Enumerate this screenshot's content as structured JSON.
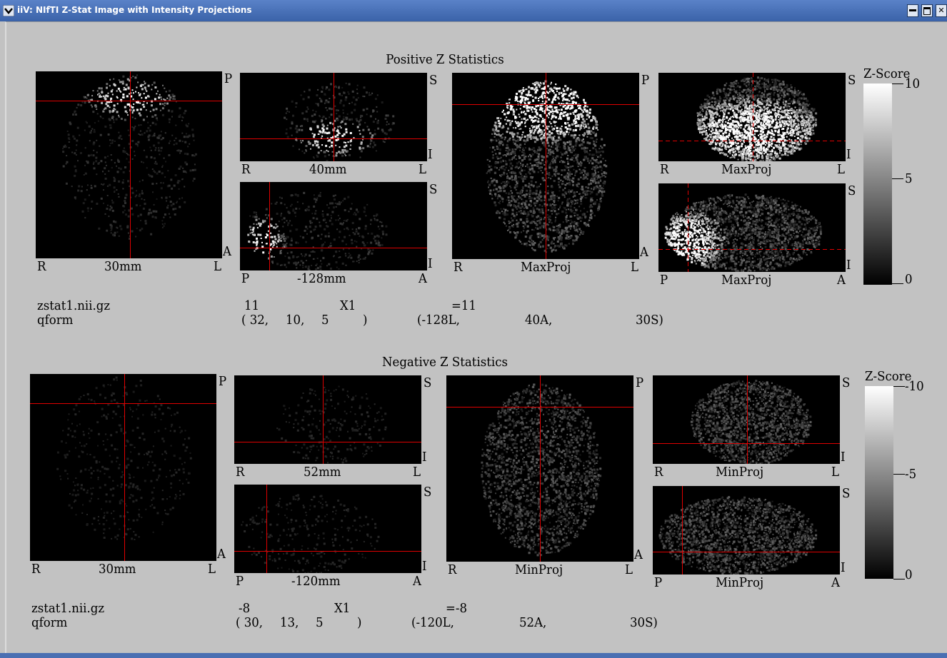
{
  "window": {
    "title": "iiV: NIfTI Z-Stat Image with Intensity Projections"
  },
  "colors": {
    "crosshair": "#e00000",
    "background": "#c2c2c2",
    "titlebar": "#4a72b8"
  },
  "icons": {
    "menu": "chevron-down-icon",
    "minimize": "minimize-icon",
    "maximize": "maximize-icon",
    "close": "close-icon"
  },
  "sections": [
    {
      "title": "Positive Z Statistics",
      "axial": {
        "top_right": "P",
        "bottom_right": "A",
        "left": "R",
        "center": "30mm",
        "right": "L"
      },
      "coronal": {
        "top_right": "S",
        "bottom_right": "I",
        "left": "R",
        "center": "40mm",
        "right": "L"
      },
      "sagittal": {
        "top_right": "S",
        "bottom_right": "I",
        "left": "P",
        "center": "-128mm",
        "right": "A"
      },
      "proj_axial": {
        "top_right": "P",
        "bottom_right": "A",
        "left": "R",
        "center": "MaxProj",
        "right": "L"
      },
      "proj_coronal": {
        "top_right": "S",
        "bottom_right": "I",
        "left": "R",
        "center": "MaxProj",
        "right": "L"
      },
      "proj_sagittal": {
        "top_right": "S",
        "bottom_right": "I",
        "left": "P",
        "center": "MaxProj",
        "right": "A"
      },
      "colorbar": {
        "title": "Z-Score",
        "max": "10",
        "mid": "5",
        "min": "0"
      },
      "info": {
        "filename": "zstat1.nii.gz",
        "value": "11",
        "multiplier": "X1",
        "result": "=11",
        "form": "qform",
        "voxel": [
          "( 32,",
          "10,",
          "5",
          ")"
        ],
        "mm": [
          "(-128L,",
          "40A,",
          "30S)"
        ]
      }
    },
    {
      "title": "Negative Z Statistics",
      "axial": {
        "top_right": "P",
        "bottom_right": "A",
        "left": "R",
        "center": "30mm",
        "right": "L"
      },
      "coronal": {
        "top_right": "S",
        "bottom_right": "I",
        "left": "R",
        "center": "52mm",
        "right": "L"
      },
      "sagittal": {
        "top_right": "S",
        "bottom_right": "I",
        "left": "P",
        "center": "-120mm",
        "right": "A"
      },
      "proj_axial": {
        "top_right": "P",
        "bottom_right": "A",
        "left": "R",
        "center": "MinProj",
        "right": "L"
      },
      "proj_coronal": {
        "top_right": "S",
        "bottom_right": "I",
        "left": "R",
        "center": "MinProj",
        "right": "L"
      },
      "proj_sagittal": {
        "top_right": "S",
        "bottom_right": "I",
        "left": "P",
        "center": "MinProj",
        "right": "A"
      },
      "colorbar": {
        "title": "Z-Score",
        "max": "-10",
        "mid": "-5",
        "min": "0"
      },
      "info": {
        "filename": "zstat1.nii.gz",
        "value": "-8",
        "multiplier": "X1",
        "result": "=-8",
        "form": "qform",
        "voxel": [
          "( 30,",
          "13,",
          "5",
          ")"
        ],
        "mm": [
          "(-120L,",
          "52A,",
          "30S)"
        ]
      }
    }
  ]
}
